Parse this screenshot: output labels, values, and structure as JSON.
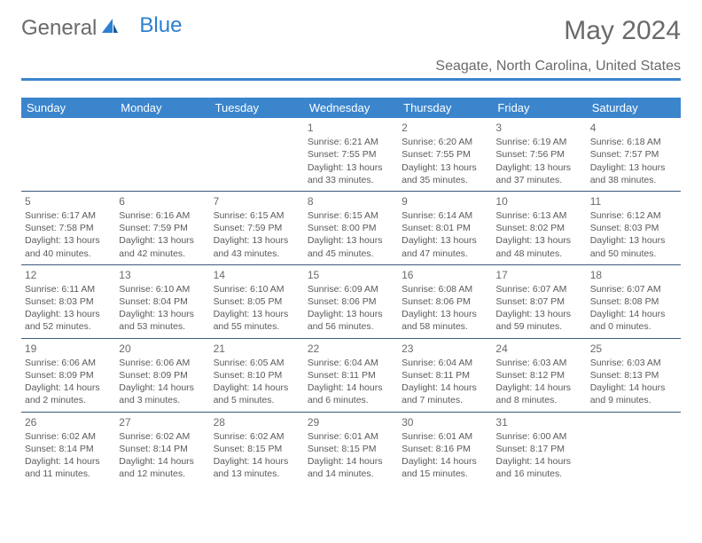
{
  "brand": {
    "part1": "General",
    "part2": "Blue"
  },
  "title": "May 2024",
  "location": "Seagate, North Carolina, United States",
  "colors": {
    "header_bg": "#3b85cd",
    "header_text": "#ffffff",
    "border": "#3b5a7a",
    "logo_blue": "#2c7fd1",
    "text": "#5a5a5a",
    "background": "#ffffff"
  },
  "typography": {
    "title_fontsize": 30,
    "location_fontsize": 16,
    "dayheader_fontsize": 13,
    "daynum_fontsize": 12,
    "cell_fontsize": 10.5
  },
  "day_headers": [
    "Sunday",
    "Monday",
    "Tuesday",
    "Wednesday",
    "Thursday",
    "Friday",
    "Saturday"
  ],
  "weeks": [
    [
      null,
      null,
      null,
      {
        "day": "1",
        "sunrise": "6:21 AM",
        "sunset": "7:55 PM",
        "daylight": "13 hours and 33 minutes."
      },
      {
        "day": "2",
        "sunrise": "6:20 AM",
        "sunset": "7:55 PM",
        "daylight": "13 hours and 35 minutes."
      },
      {
        "day": "3",
        "sunrise": "6:19 AM",
        "sunset": "7:56 PM",
        "daylight": "13 hours and 37 minutes."
      },
      {
        "day": "4",
        "sunrise": "6:18 AM",
        "sunset": "7:57 PM",
        "daylight": "13 hours and 38 minutes."
      }
    ],
    [
      {
        "day": "5",
        "sunrise": "6:17 AM",
        "sunset": "7:58 PM",
        "daylight": "13 hours and 40 minutes."
      },
      {
        "day": "6",
        "sunrise": "6:16 AM",
        "sunset": "7:59 PM",
        "daylight": "13 hours and 42 minutes."
      },
      {
        "day": "7",
        "sunrise": "6:15 AM",
        "sunset": "7:59 PM",
        "daylight": "13 hours and 43 minutes."
      },
      {
        "day": "8",
        "sunrise": "6:15 AM",
        "sunset": "8:00 PM",
        "daylight": "13 hours and 45 minutes."
      },
      {
        "day": "9",
        "sunrise": "6:14 AM",
        "sunset": "8:01 PM",
        "daylight": "13 hours and 47 minutes."
      },
      {
        "day": "10",
        "sunrise": "6:13 AM",
        "sunset": "8:02 PM",
        "daylight": "13 hours and 48 minutes."
      },
      {
        "day": "11",
        "sunrise": "6:12 AM",
        "sunset": "8:03 PM",
        "daylight": "13 hours and 50 minutes."
      }
    ],
    [
      {
        "day": "12",
        "sunrise": "6:11 AM",
        "sunset": "8:03 PM",
        "daylight": "13 hours and 52 minutes."
      },
      {
        "day": "13",
        "sunrise": "6:10 AM",
        "sunset": "8:04 PM",
        "daylight": "13 hours and 53 minutes."
      },
      {
        "day": "14",
        "sunrise": "6:10 AM",
        "sunset": "8:05 PM",
        "daylight": "13 hours and 55 minutes."
      },
      {
        "day": "15",
        "sunrise": "6:09 AM",
        "sunset": "8:06 PM",
        "daylight": "13 hours and 56 minutes."
      },
      {
        "day": "16",
        "sunrise": "6:08 AM",
        "sunset": "8:06 PM",
        "daylight": "13 hours and 58 minutes."
      },
      {
        "day": "17",
        "sunrise": "6:07 AM",
        "sunset": "8:07 PM",
        "daylight": "13 hours and 59 minutes."
      },
      {
        "day": "18",
        "sunrise": "6:07 AM",
        "sunset": "8:08 PM",
        "daylight": "14 hours and 0 minutes."
      }
    ],
    [
      {
        "day": "19",
        "sunrise": "6:06 AM",
        "sunset": "8:09 PM",
        "daylight": "14 hours and 2 minutes."
      },
      {
        "day": "20",
        "sunrise": "6:06 AM",
        "sunset": "8:09 PM",
        "daylight": "14 hours and 3 minutes."
      },
      {
        "day": "21",
        "sunrise": "6:05 AM",
        "sunset": "8:10 PM",
        "daylight": "14 hours and 5 minutes."
      },
      {
        "day": "22",
        "sunrise": "6:04 AM",
        "sunset": "8:11 PM",
        "daylight": "14 hours and 6 minutes."
      },
      {
        "day": "23",
        "sunrise": "6:04 AM",
        "sunset": "8:11 PM",
        "daylight": "14 hours and 7 minutes."
      },
      {
        "day": "24",
        "sunrise": "6:03 AM",
        "sunset": "8:12 PM",
        "daylight": "14 hours and 8 minutes."
      },
      {
        "day": "25",
        "sunrise": "6:03 AM",
        "sunset": "8:13 PM",
        "daylight": "14 hours and 9 minutes."
      }
    ],
    [
      {
        "day": "26",
        "sunrise": "6:02 AM",
        "sunset": "8:14 PM",
        "daylight": "14 hours and 11 minutes."
      },
      {
        "day": "27",
        "sunrise": "6:02 AM",
        "sunset": "8:14 PM",
        "daylight": "14 hours and 12 minutes."
      },
      {
        "day": "28",
        "sunrise": "6:02 AM",
        "sunset": "8:15 PM",
        "daylight": "14 hours and 13 minutes."
      },
      {
        "day": "29",
        "sunrise": "6:01 AM",
        "sunset": "8:15 PM",
        "daylight": "14 hours and 14 minutes."
      },
      {
        "day": "30",
        "sunrise": "6:01 AM",
        "sunset": "8:16 PM",
        "daylight": "14 hours and 15 minutes."
      },
      {
        "day": "31",
        "sunrise": "6:00 AM",
        "sunset": "8:17 PM",
        "daylight": "14 hours and 16 minutes."
      },
      null
    ]
  ],
  "labels": {
    "sunrise": "Sunrise: ",
    "sunset": "Sunset: ",
    "daylight": "Daylight: "
  }
}
